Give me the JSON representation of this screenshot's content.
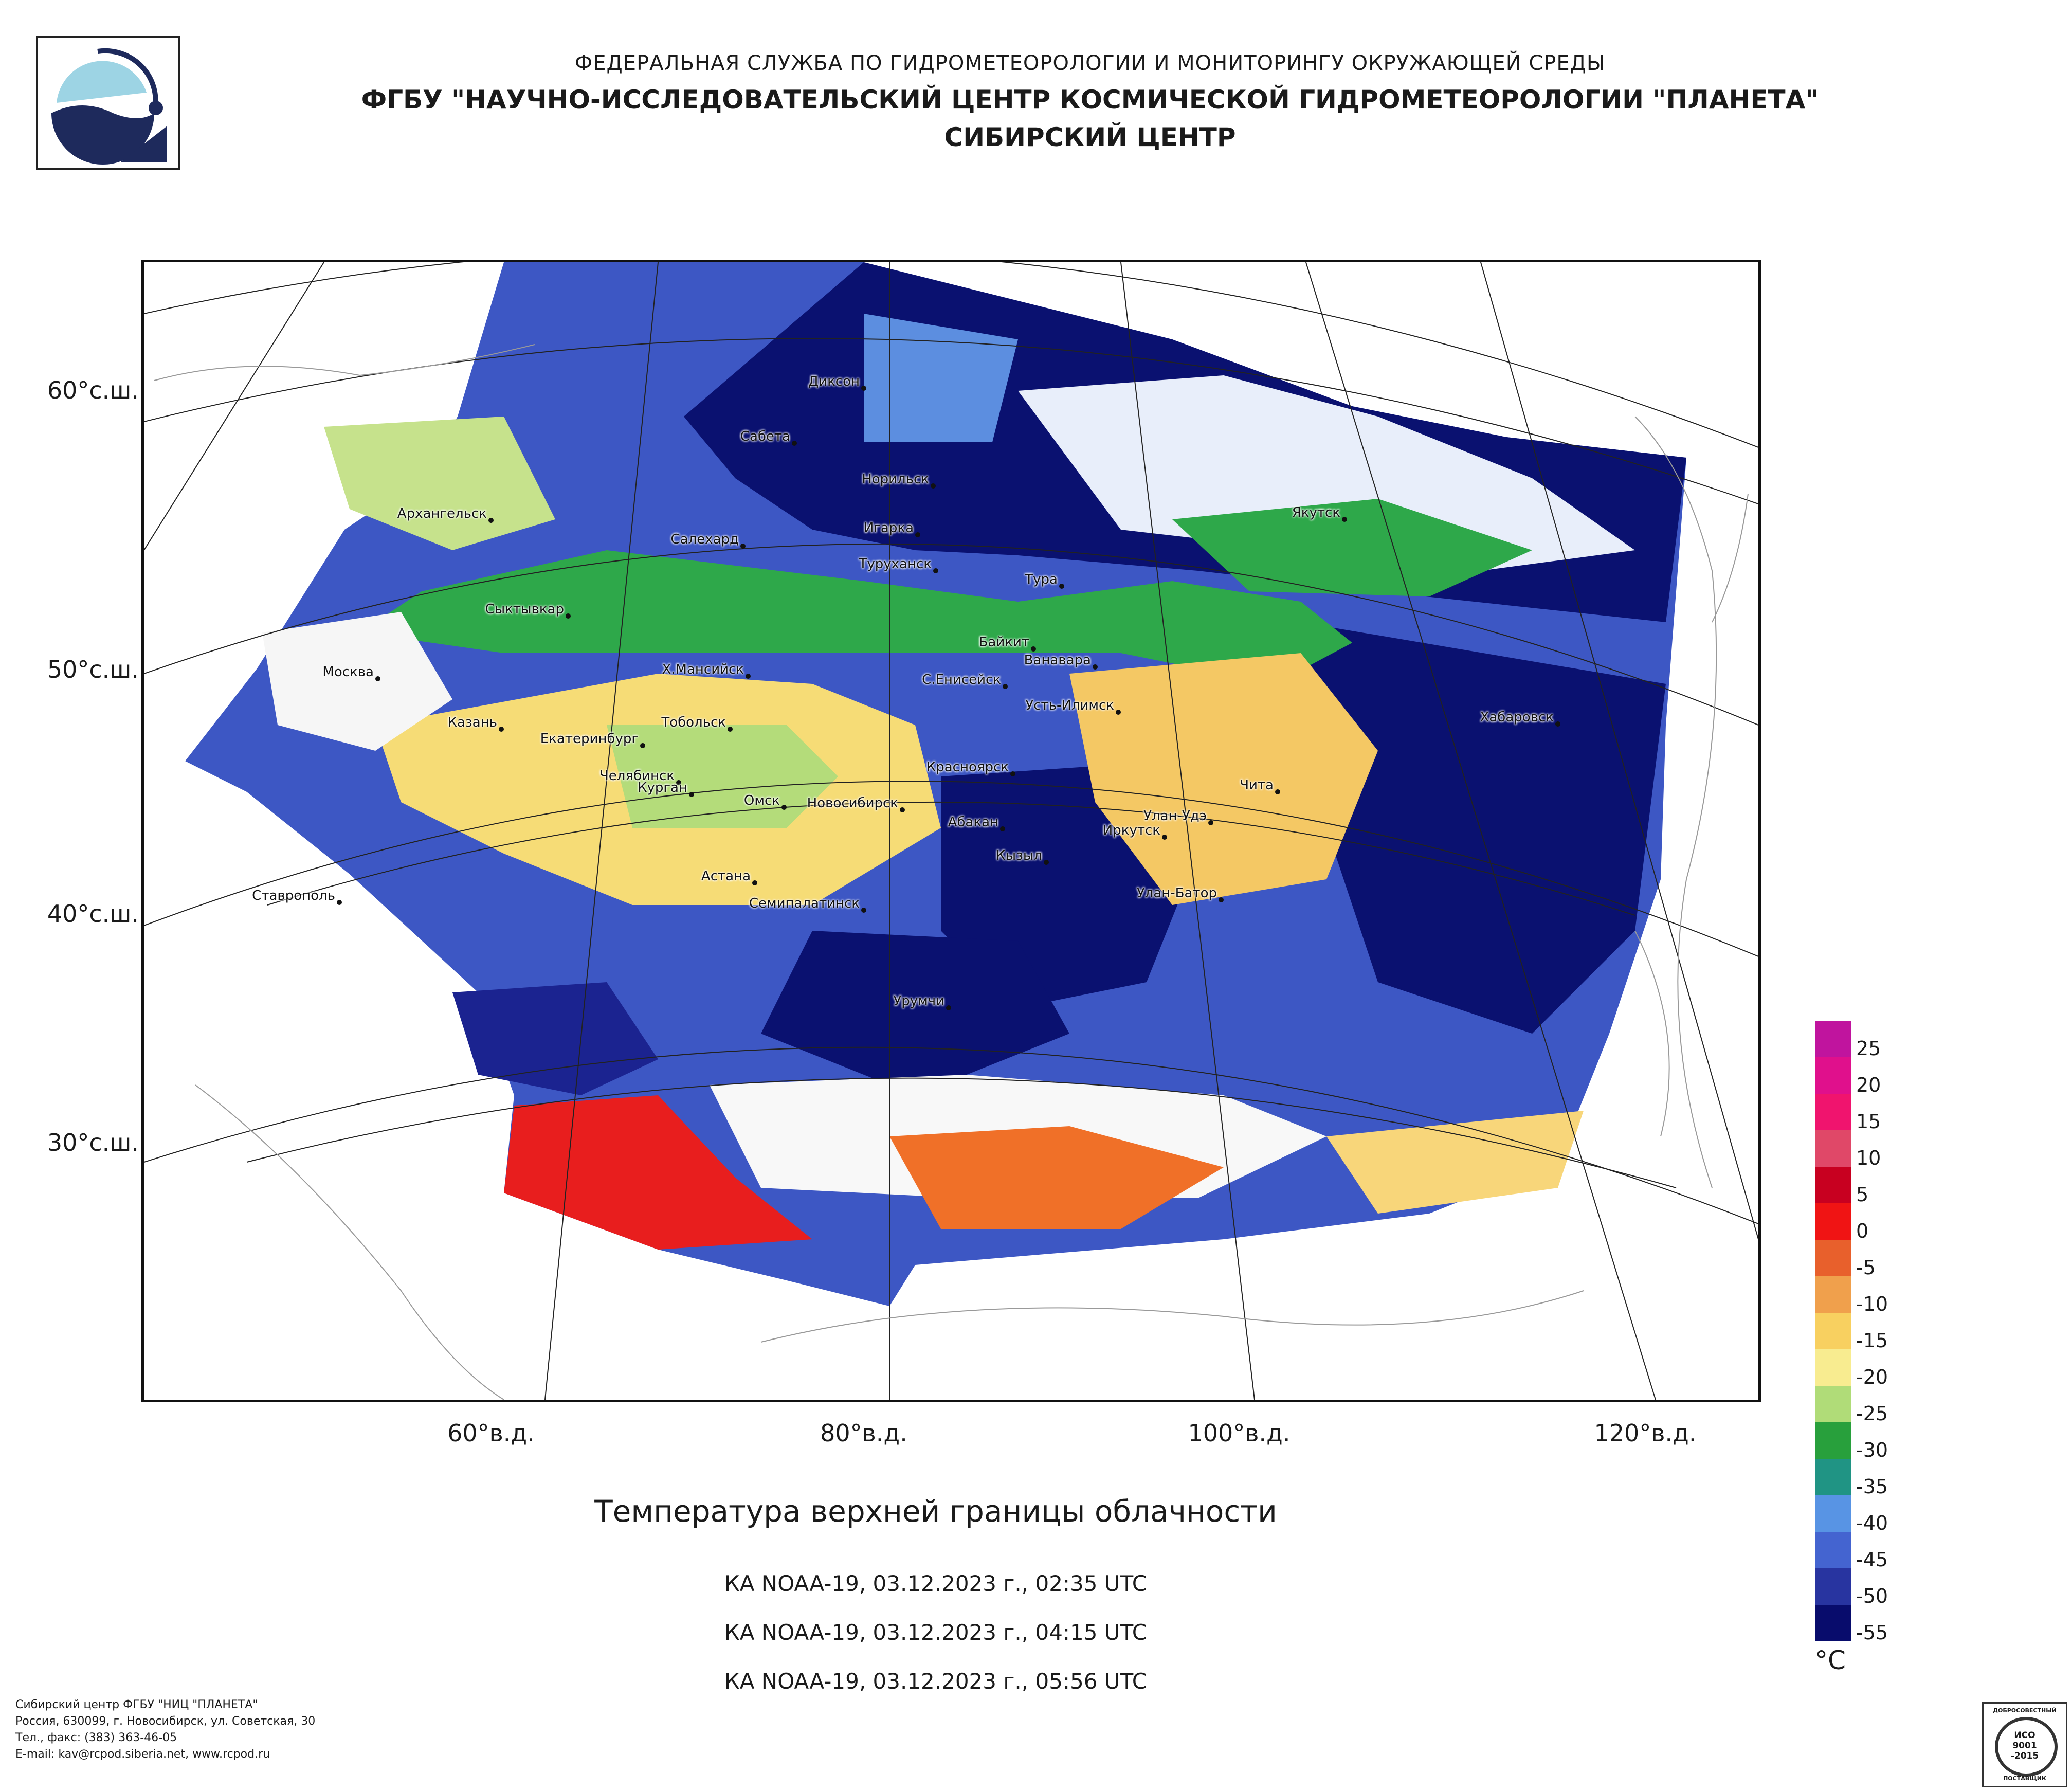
{
  "header": {
    "line1": "ФЕДЕРАЛЬНАЯ СЛУЖБА ПО ГИДРОМЕТЕОРОЛОГИИ И МОНИТОРИНГУ ОКРУЖАЮЩЕЙ СРЕДЫ",
    "line2": "ФГБУ \"НАУЧНО-ИССЛЕДОВАТЕЛЬСКИЙ ЦЕНТР КОСМИЧЕСКОЙ ГИДРОМЕТЕОРОЛОГИИ \"ПЛАНЕТА\"",
    "line3": "СИБИРСКИЙ ЦЕНТР"
  },
  "map": {
    "lat_labels": [
      "60°с.ш.",
      "50°с.ш.",
      "40°с.ш.",
      "30°с.ш."
    ],
    "lon_labels": [
      "60°в.д.",
      "80°в.д.",
      "100°в.д.",
      "120°в.д."
    ],
    "cities": [
      "Диксон",
      "Сабета",
      "Норильск",
      "Архангельск",
      "Салехард",
      "Игарка",
      "Туруханск",
      "Якутск",
      "Тура",
      "Сыктывкар",
      "Байкит",
      "Ванавара",
      "Х.Мансийск",
      "Москва",
      "С.Енисейск",
      "Усть-Илимск",
      "Хабаровск",
      "Казань",
      "Тобольск",
      "Екатеринбург",
      "Красноярск",
      "Челябинск",
      "Курган",
      "Омск",
      "Чита",
      "Новосибирск",
      "Абакан",
      "Улан-Удэ",
      "Иркутск",
      "Кызыл",
      "Астана",
      "Ставрополь",
      "Улан-Батор",
      "Семипалатинск",
      "Урумчи"
    ]
  },
  "title": "Температура верхней границы облачности",
  "passes": [
    "КА NOAA-19, 03.12.2023 г., 02:35 UTC",
    "КА NOAA-19, 03.12.2023 г., 04:15 UTC",
    "КА NOAA-19, 03.12.2023 г., 05:56 UTC"
  ],
  "legend": {
    "unit": "°C",
    "labels": [
      "25",
      "20",
      "15",
      "10",
      "5",
      "0",
      "-5",
      "-10",
      "-15",
      "-20",
      "-25",
      "-30",
      "-35",
      "-40",
      "-45",
      "-50",
      "-55"
    ],
    "colors": [
      "#c0149e",
      "#e0108c",
      "#f0146e",
      "#e04868",
      "#c80020",
      "#f01414",
      "#e8602c",
      "#f0a04c",
      "#f8d060",
      "#f8ec90",
      "#b0dc78",
      "#28a03c",
      "#209484",
      "#5894e4",
      "#4464d0",
      "#2834a0",
      "#080c6c"
    ]
  },
  "footer": {
    "line1": "Сибирский центр ФГБУ \"НИЦ \"ПЛАНЕТА\"",
    "line2": "Россия, 630099, г. Новосибирск, ул. Советская, 30",
    "line3": "Тел., факс: (383) 363-46-05",
    "line4": "E-mail: kav@rcpod.siberia.net, www.rcpod.ru"
  },
  "iso_badge": {
    "top": "ДОБРОСОВЕСТНЫЙ",
    "line1": "ИСО",
    "line2": "9001",
    "line3": "-2015",
    "bottom": "ПОСТАВЩИК"
  }
}
